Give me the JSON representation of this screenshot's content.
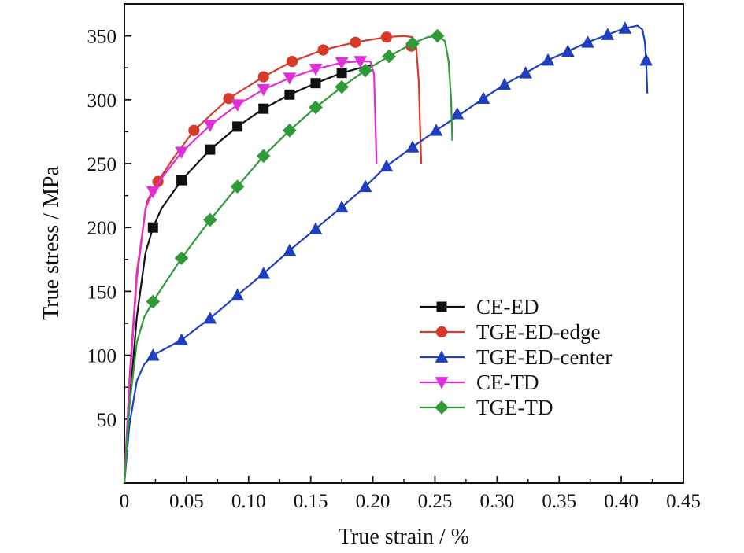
{
  "chart_data": {
    "type": "line",
    "title": "",
    "xlabel": "True strain / %",
    "ylabel": "True stress / MPa",
    "xlim": [
      0,
      0.45
    ],
    "ylim": [
      0,
      375
    ],
    "xticks": [
      0,
      0.05,
      0.1,
      0.15,
      0.2,
      0.25,
      0.3,
      0.35,
      0.4,
      0.45
    ],
    "xtick_labels": [
      "0",
      "0.05",
      "0.10",
      "0.15",
      "0.20",
      "0.25",
      "0.30",
      "0.35",
      "0.40",
      "0.45"
    ],
    "yticks": [
      50,
      100,
      150,
      200,
      250,
      300,
      350
    ],
    "ytick_labels": [
      "50",
      "100",
      "150",
      "200",
      "250",
      "300",
      "350"
    ],
    "grid": false,
    "legend_position": "bottom-right",
    "series": [
      {
        "name": "CE-ED",
        "color": "#111111",
        "marker": "square",
        "x": [
          0,
          0.004,
          0.01,
          0.017,
          0.023,
          0.03,
          0.046,
          0.069,
          0.091,
          0.112,
          0.133,
          0.154,
          0.175,
          0.19,
          0.198,
          0.2
        ],
        "y": [
          0,
          60,
          130,
          180,
          200,
          215,
          237,
          261,
          279,
          293,
          304,
          313,
          321,
          325,
          327,
          327
        ],
        "marker_x": [
          0.023,
          0.046,
          0.069,
          0.091,
          0.112,
          0.133,
          0.154,
          0.175
        ],
        "marker_y": [
          200,
          237,
          261,
          279,
          293,
          304,
          313,
          321
        ]
      },
      {
        "name": "TGE-ED-edge",
        "color": "#d83a2a",
        "marker": "circle",
        "x": [
          0,
          0.004,
          0.01,
          0.018,
          0.027,
          0.04,
          0.056,
          0.084,
          0.112,
          0.135,
          0.16,
          0.186,
          0.211,
          0.225,
          0.232,
          0.235,
          0.237,
          0.238,
          0.239
        ],
        "y": [
          0,
          80,
          165,
          220,
          236,
          255,
          276,
          301,
          318,
          330,
          339,
          345,
          349,
          350,
          349,
          340,
          315,
          280,
          250
        ],
        "marker_x": [
          0.027,
          0.056,
          0.084,
          0.112,
          0.135,
          0.16,
          0.186,
          0.211,
          0.231
        ],
        "marker_y": [
          236,
          276,
          301,
          318,
          330,
          339,
          345,
          349,
          342
        ]
      },
      {
        "name": "TGE-ED-center",
        "color": "#1f3fbf",
        "marker": "triangle-up",
        "x": [
          0,
          0.004,
          0.01,
          0.016,
          0.023,
          0.046,
          0.069,
          0.091,
          0.112,
          0.133,
          0.154,
          0.175,
          0.194,
          0.211,
          0.232,
          0.251,
          0.271,
          0.289,
          0.306,
          0.323,
          0.341,
          0.357,
          0.373,
          0.389,
          0.403,
          0.413,
          0.417,
          0.419,
          0.42,
          0.421
        ],
        "y": [
          0,
          45,
          80,
          93,
          100,
          112,
          129,
          147,
          164,
          182,
          199,
          216,
          232,
          248,
          263,
          276,
          289,
          301,
          312,
          321,
          331,
          338,
          345,
          351,
          356,
          358,
          355,
          345,
          330,
          305
        ],
        "marker_x": [
          0.023,
          0.046,
          0.069,
          0.091,
          0.112,
          0.133,
          0.154,
          0.175,
          0.194,
          0.211,
          0.232,
          0.251,
          0.268,
          0.289,
          0.306,
          0.323,
          0.341,
          0.357,
          0.373,
          0.389,
          0.403,
          0.42
        ],
        "marker_y": [
          100,
          112,
          129,
          147,
          164,
          182,
          199,
          216,
          232,
          248,
          263,
          276,
          289,
          301,
          312,
          321,
          331,
          338,
          345,
          351,
          356,
          331
        ]
      },
      {
        "name": "CE-TD",
        "color": "#e02fd8",
        "marker": "triangle-down",
        "x": [
          0,
          0.004,
          0.01,
          0.017,
          0.023,
          0.028,
          0.046,
          0.069,
          0.091,
          0.112,
          0.133,
          0.154,
          0.175,
          0.19,
          0.198,
          0.201,
          0.202,
          0.203
        ],
        "y": [
          0,
          75,
          160,
          215,
          228,
          236,
          259,
          280,
          296,
          308,
          317,
          324,
          329,
          330,
          330,
          320,
          285,
          250
        ],
        "marker_x": [
          0.023,
          0.046,
          0.069,
          0.091,
          0.112,
          0.133,
          0.154,
          0.175,
          0.19
        ],
        "marker_y": [
          228,
          259,
          280,
          296,
          308,
          317,
          324,
          329,
          330
        ]
      },
      {
        "name": "TGE-TD",
        "color": "#2f9a38",
        "marker": "diamond",
        "x": [
          0,
          0.004,
          0.01,
          0.016,
          0.023,
          0.046,
          0.069,
          0.091,
          0.112,
          0.133,
          0.154,
          0.175,
          0.194,
          0.213,
          0.232,
          0.244,
          0.252,
          0.258,
          0.261,
          0.263,
          0.264
        ],
        "y": [
          0,
          60,
          110,
          130,
          142,
          176,
          206,
          232,
          256,
          276,
          294,
          310,
          323,
          334,
          344,
          349,
          350,
          346,
          330,
          300,
          268
        ],
        "marker_x": [
          0.023,
          0.046,
          0.069,
          0.091,
          0.112,
          0.133,
          0.154,
          0.175,
          0.194,
          0.213,
          0.232,
          0.252
        ],
        "marker_y": [
          142,
          176,
          206,
          232,
          256,
          276,
          294,
          310,
          323,
          334,
          344,
          350
        ]
      }
    ]
  }
}
